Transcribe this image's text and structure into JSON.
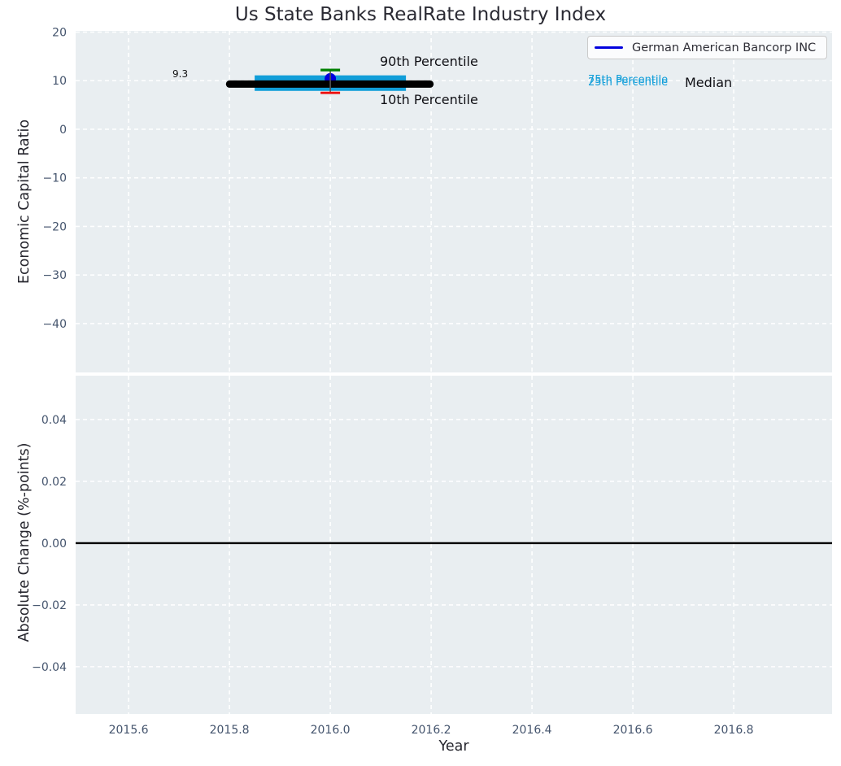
{
  "figure": {
    "title": "Us State Banks RealRate Industry Index"
  },
  "axes": {
    "top_ylabel": "Economic Capital Ratio",
    "bottom_ylabel": "Absolute Change (%-points)",
    "xlabel": "Year"
  },
  "legend": {
    "label": "German American Bancorp INC",
    "line_color": "#0000dd"
  },
  "annotations": {
    "median_value": "9.3",
    "p90": "90th Percentile",
    "p10": "10th Percentile",
    "p75": "75th Percentile",
    "p25": "25th Percentile",
    "median": "Median"
  },
  "colors": {
    "plot_bg": "#e9eef1",
    "grid": "#ffffff",
    "tick_label": "#44546d",
    "iqr_band": "#119ed9",
    "median_line": "#000000",
    "company_marker": "#0000dd",
    "p90_cap": "#008000",
    "p10_cap": "#ee1111",
    "zero_line": "#000000"
  },
  "chart_data": [
    {
      "type": "scatter",
      "title": "Us State Banks RealRate Industry Index",
      "xlabel": "Year",
      "ylabel": "Economic Capital Ratio",
      "xlim": [
        2015.495,
        2016.995
      ],
      "ylim": [
        -50.05,
        20.25
      ],
      "xticks": [
        2015.6,
        2015.8,
        2016.0,
        2016.2,
        2016.4,
        2016.6,
        2016.8
      ],
      "xtick_labels": [
        "2015.6",
        "2015.8",
        "2016.0",
        "2016.2",
        "2016.4",
        "2016.6",
        "2016.8"
      ],
      "yticks": [
        20,
        10,
        0,
        -10,
        -20,
        -30,
        -40
      ],
      "ytick_labels": [
        "20",
        "10",
        "0",
        "−10",
        "−20",
        "−30",
        "−40"
      ],
      "grid": "white-dashed",
      "legend_position": "upper right",
      "series": [
        {
          "role": "company",
          "name": "German American Bancorp INC",
          "x": 2016.0,
          "y": 10.4,
          "marker": "circle",
          "color": "#0000dd"
        },
        {
          "role": "median",
          "name": "Median",
          "x": 2016.0,
          "y": 9.3,
          "value_label": "9.3",
          "span": [
            2015.793,
            2016.205
          ],
          "color": "#000000"
        },
        {
          "role": "iqr",
          "name": "25th-75th Percentile band",
          "low": 7.9,
          "high": 11.1,
          "span": [
            2015.85,
            2016.15
          ],
          "color": "#119ed9"
        },
        {
          "role": "p90",
          "name": "90th Percentile",
          "x": 2016.0,
          "y": 12.2,
          "color": "#008000"
        },
        {
          "role": "p10",
          "name": "10th Percentile",
          "x": 2016.0,
          "y": 7.5,
          "color": "#ee1111"
        }
      ]
    },
    {
      "type": "line",
      "xlabel": "Year",
      "ylabel": "Absolute Change (%-points)",
      "xlim": [
        2015.495,
        2016.995
      ],
      "ylim": [
        -0.0553,
        0.0542
      ],
      "xticks": [
        2015.6,
        2015.8,
        2016.0,
        2016.2,
        2016.4,
        2016.6,
        2016.8
      ],
      "xtick_labels": [
        "2015.6",
        "2015.8",
        "2016.0",
        "2016.2",
        "2016.4",
        "2016.6",
        "2016.8"
      ],
      "yticks": [
        0.04,
        0.02,
        0,
        -0.02,
        -0.04
      ],
      "ytick_labels": [
        "0.04",
        "0.02",
        "0.00",
        "−0.02",
        "−0.04"
      ],
      "grid": "white-dashed",
      "zero_line": {
        "y": 0,
        "color": "#000000"
      }
    }
  ]
}
